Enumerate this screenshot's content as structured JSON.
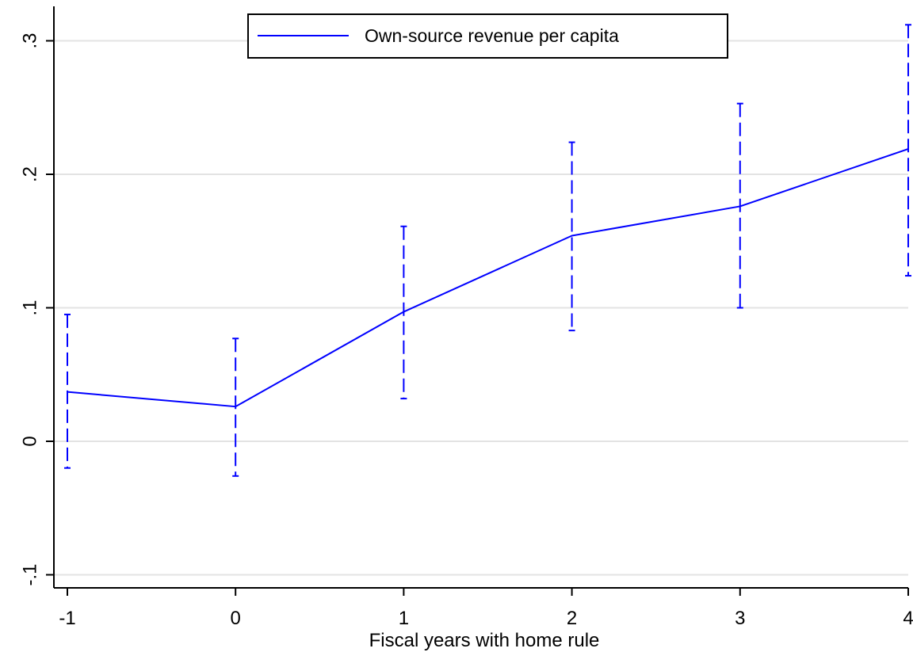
{
  "chart_data": {
    "type": "line",
    "title": "",
    "xlabel": "Fiscal years with home rule",
    "ylabel": "",
    "x": [
      -1,
      0,
      1,
      2,
      3,
      4
    ],
    "x_tick_labels": [
      "-1",
      "0",
      "1",
      "2",
      "3",
      "4"
    ],
    "y_ticks": [
      -0.1,
      0,
      0.1,
      0.2,
      0.3
    ],
    "y_tick_labels": [
      "-.1",
      "0",
      ".1",
      ".2",
      ".3"
    ],
    "xlim": [
      -1,
      4
    ],
    "ylim": [
      -0.1,
      0.3
    ],
    "grid": true,
    "legend_position": "top-center",
    "series": [
      {
        "name": "Own-source revenue per capita",
        "values": [
          0.037,
          0.026,
          0.097,
          0.154,
          0.176,
          0.219
        ],
        "ci_lower": [
          -0.02,
          -0.026,
          0.032,
          0.083,
          0.1,
          0.124
        ],
        "ci_upper": [
          0.095,
          0.077,
          0.161,
          0.224,
          0.253,
          0.312
        ],
        "color": "#0000ff",
        "ci_style": "dashed capped error bars"
      }
    ],
    "colors": {
      "series": "#0000ff",
      "grid": "#e3e3e3",
      "axis": "#000000",
      "background": "#ffffff"
    }
  }
}
